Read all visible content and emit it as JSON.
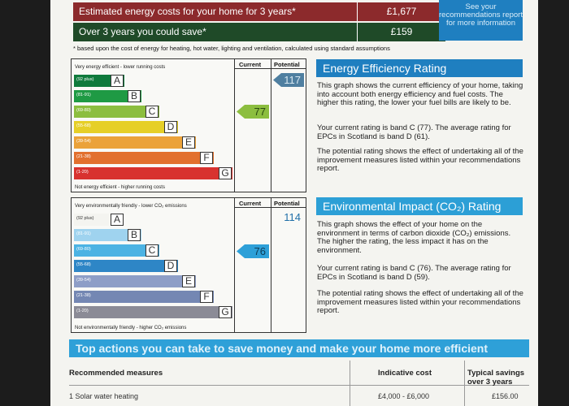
{
  "costs": {
    "row1_label": "Estimated energy costs for your home for 3 years*",
    "row1_value": "£1,677",
    "row2_label": "Over 3 years you could save*",
    "row2_value": "£159",
    "see_text": "See your recommendations report for more information",
    "footnote": "* based upon the cost of energy for heating, hot water, lighting and ventilation, calculated using standard assumptions"
  },
  "efficiency_chart": {
    "top_label": "Very energy efficient - lower running costs",
    "bottom_label": "Not energy efficient - higher running costs",
    "col_current": "Current",
    "col_potential": "Potential",
    "current": "77",
    "potential": "117",
    "bands": [
      {
        "letter": "A",
        "range": "(92 plus)",
        "color": "#0f7a3c"
      },
      {
        "letter": "B",
        "range": "(81-91)",
        "color": "#1f9a44"
      },
      {
        "letter": "C",
        "range": "(69-80)",
        "color": "#8cbe3f"
      },
      {
        "letter": "D",
        "range": "(55-68)",
        "color": "#e6cf27"
      },
      {
        "letter": "E",
        "range": "(39-54)",
        "color": "#eba23a"
      },
      {
        "letter": "F",
        "range": "(21-38)",
        "color": "#e2702e"
      },
      {
        "letter": "G",
        "range": "(1-20)",
        "color": "#d8322f"
      }
    ]
  },
  "environment_chart": {
    "top_label": "Very environmentally friendly - lower CO₂ emissions",
    "bottom_label": "Not environmentally friendly - higher CO₂ emissions",
    "col_current": "Current",
    "col_potential": "Potential",
    "current": "76",
    "potential": "114",
    "bands": [
      {
        "letter": "A",
        "range": "(92 plus)",
        "color": "#f4f4f0"
      },
      {
        "letter": "B",
        "range": "(81-91)",
        "color": "#9fd3ef"
      },
      {
        "letter": "C",
        "range": "(69-80)",
        "color": "#4cb3e3"
      },
      {
        "letter": "D",
        "range": "(55-68)",
        "color": "#2e86c6"
      },
      {
        "letter": "E",
        "range": "(39-54)",
        "color": "#8e9ec7"
      },
      {
        "letter": "F",
        "range": "(21-38)",
        "color": "#7487b3"
      },
      {
        "letter": "G",
        "range": "(1-20)",
        "color": "#8b8b96"
      }
    ]
  },
  "efficiency_box": {
    "title": "Energy Efficiency Rating",
    "p1": "This graph shows the current efficiency of your home, taking into account both energy efficiency and fuel costs. The higher this rating, the lower your fuel bills are likely to be.",
    "p2": "Your current rating is band C (77). The average rating for EPCs in Scotland is band D (61).",
    "p3": "The potential rating shows the effect of undertaking all of the improvement measures listed within your recommendations report."
  },
  "environment_box": {
    "title": "Environmental Impact (CO₂) Rating",
    "p1": "This graph shows the effect of your home on the environment in terms of carbon dioxide (CO₂) emissions. The higher the rating, the less impact it has on the environment.",
    "p2": "Your current rating is band C (76). The average rating for EPCs in Scotland is band D (59).",
    "p3": "The potential rating shows the effect of undertaking all of the improvement measures listed within your recommendations report."
  },
  "actions": {
    "title": "Top actions you can take to save money and make your home more efficient",
    "col1": "Recommended measures",
    "col2": "Indicative cost",
    "col3": "Typical savings over 3 years",
    "row1": {
      "measure": "1 Solar water heating",
      "cost": "£4,000 - £6,000",
      "saving": "£156.00"
    }
  }
}
